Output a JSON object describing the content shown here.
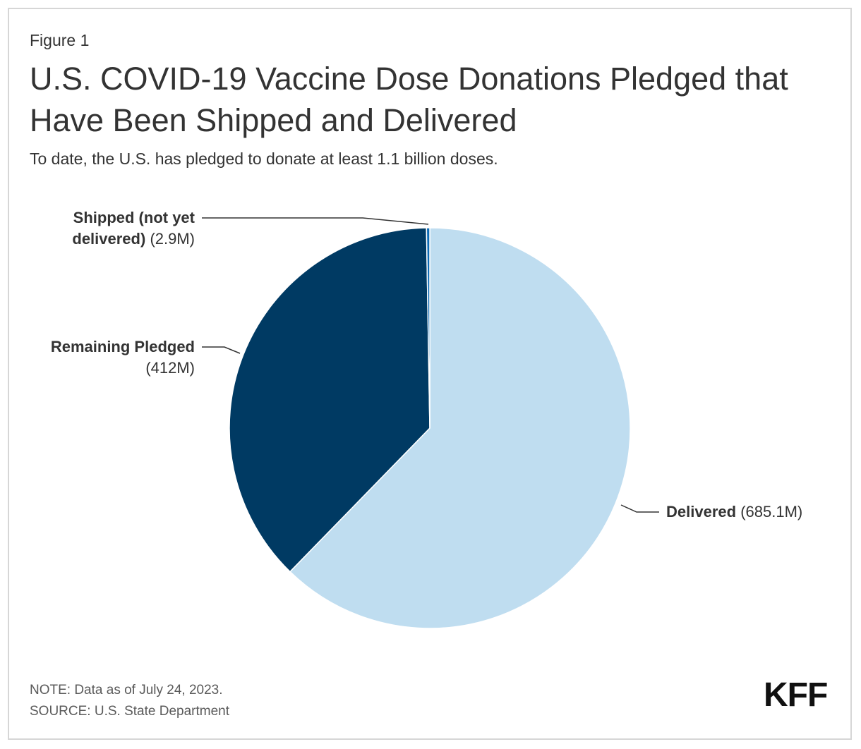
{
  "figure_label": "Figure 1",
  "title": "U.S. COVID-19 Vaccine Dose Donations Pledged that Have Been Shipped and Delivered",
  "subtitle": "To date, the U.S. has pledged to donate at least 1.1 billion doses.",
  "note": "NOTE: Data as of July 24, 2023.",
  "source": "SOURCE: U.S. State Department",
  "logo": "KFF",
  "chart_data": {
    "type": "pie",
    "title": "U.S. COVID-19 Vaccine Dose Donations Pledged that Have Been Shipped and Delivered",
    "unit": "million doses",
    "slices": [
      {
        "name": "Delivered",
        "label_bold": "Delivered",
        "label_value": "(685.1M)",
        "value": 685.1,
        "color": "#bfddf0"
      },
      {
        "name": "Remaining Pledged",
        "label_bold": "Remaining Pledged",
        "label_value": "(412M)",
        "value": 412,
        "color": "#003a63"
      },
      {
        "name": "Shipped (not yet delivered)",
        "label_bold": "Shipped (not yet delivered)",
        "label_value": "(2.9M)",
        "value": 2.9,
        "color": "#0b6ab5"
      }
    ]
  }
}
